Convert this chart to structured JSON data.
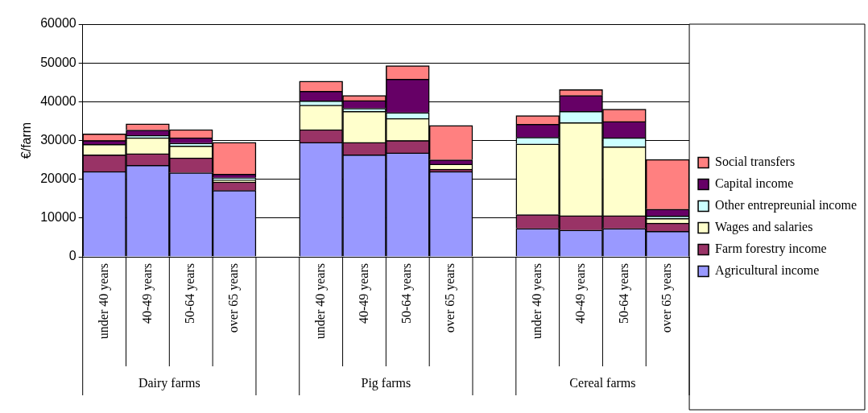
{
  "chart_data": {
    "type": "bar",
    "stacked": true,
    "ylabel": "€/farm",
    "categories": [
      "under 40 years",
      "40-49 years",
      "50-64 years",
      "over 65 years",
      null,
      "under 40 years",
      "40-49 years",
      "50-64 years",
      "over 65 years",
      null,
      "under 40 years",
      "40-49 years",
      "50-64 years",
      "over 65 years"
    ],
    "annotations": [
      "Dairy farms",
      "Pig farms",
      "Cereal farms"
    ],
    "series": [
      {
        "name": "Agricultural income",
        "color": "#9999ff",
        "values": [
          22000,
          23600,
          21700,
          17100,
          null,
          29500,
          26300,
          26800,
          22000,
          null,
          7300,
          6900,
          7300,
          6600
        ]
      },
      {
        "name": "Farm forestry income",
        "color": "#993366",
        "values": [
          4300,
          3000,
          3800,
          2200,
          null,
          3300,
          3200,
          3200,
          600,
          null,
          3600,
          3700,
          3300,
          2100
        ]
      },
      {
        "name": "Wages and salaries",
        "color": "#ffffcc",
        "values": [
          2700,
          4100,
          3100,
          500,
          null,
          6300,
          8000,
          5700,
          1300,
          null,
          18200,
          24000,
          17800,
          1200
        ]
      },
      {
        "name": "Other entrepreunial income",
        "color": "#ccffff",
        "values": [
          null,
          600,
          700,
          600,
          null,
          1100,
          800,
          1500,
          null,
          null,
          1700,
          2900,
          2300,
          600
        ]
      },
      {
        "name": "Capital income",
        "color": "#660066",
        "values": [
          1000,
          1400,
          1400,
          900,
          null,
          2500,
          2000,
          8600,
          1100,
          null,
          3400,
          4100,
          4200,
          1800
        ]
      },
      {
        "name": "Social transfers",
        "color": "#ff8080",
        "values": [
          1700,
          1600,
          2100,
          8200,
          null,
          2600,
          1300,
          3500,
          8900,
          null,
          2200,
          1500,
          3200,
          12800
        ]
      }
    ],
    "ylim": [
      0,
      60000
    ],
    "yticks": [
      0,
      10000,
      20000,
      30000,
      40000,
      50000,
      60000
    ],
    "grid": "y",
    "legend": "right"
  }
}
